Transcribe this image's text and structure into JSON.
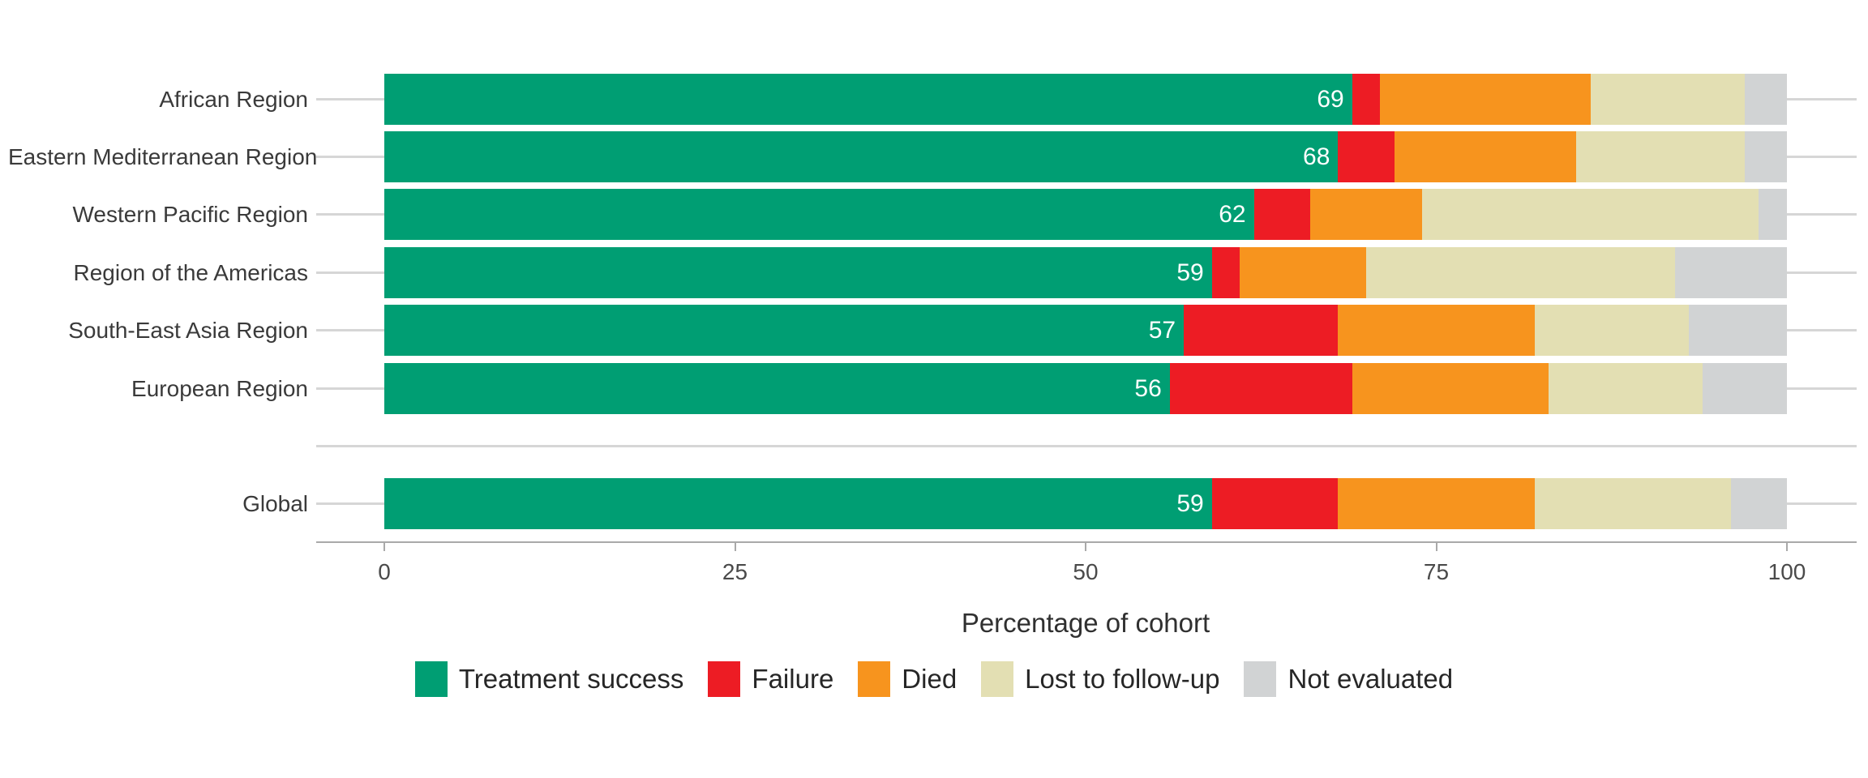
{
  "chart_data": {
    "type": "bar",
    "subtype": "horizontal-stacked-percentage",
    "title": "",
    "xlabel": "Percentage of cohort",
    "ylabel": "",
    "xlim": [
      0,
      100
    ],
    "x_ticks": [
      0,
      25,
      50,
      75,
      100
    ],
    "grid": "horizontal category gridlines only",
    "legend_position": "bottom",
    "categories": [
      "African Region",
      "Eastern Mediterranean Region",
      "Western Pacific Region",
      "Region of the Americas",
      "South-East Asia Region",
      "European Region",
      "Global"
    ],
    "series": [
      {
        "name": "Treatment success",
        "color": "#009e73",
        "values": [
          69,
          68,
          62,
          59,
          57,
          56,
          59
        ]
      },
      {
        "name": "Failure",
        "color": "#ed1c24",
        "values": [
          2,
          4,
          4,
          2,
          11,
          13,
          9
        ]
      },
      {
        "name": "Died",
        "color": "#f7941e",
        "values": [
          15,
          13,
          8,
          9,
          14,
          14,
          14
        ]
      },
      {
        "name": "Lost to follow-up",
        "color": "#e3dfb3",
        "values": [
          11,
          12,
          24,
          22,
          11,
          11,
          14
        ]
      },
      {
        "name": "Not evaluated",
        "color": "#d1d3d4",
        "values": [
          3,
          3,
          2,
          8,
          7,
          6,
          4
        ]
      }
    ],
    "bar_value_labels": [
      "69",
      "68",
      "62",
      "59",
      "57",
      "56",
      "59"
    ],
    "bar_value_label_series": "Treatment success"
  },
  "axis": {
    "x_title": "Percentage of cohort",
    "tick_labels": [
      "0",
      "25",
      "50",
      "75",
      "100"
    ]
  },
  "legend": {
    "items": [
      {
        "label": "Treatment success",
        "color": "#009e73"
      },
      {
        "label": "Failure",
        "color": "#ed1c24"
      },
      {
        "label": "Died",
        "color": "#f7941e"
      },
      {
        "label": "Lost to follow-up",
        "color": "#e3dfb3"
      },
      {
        "label": "Not evaluated",
        "color": "#d1d3d4"
      }
    ]
  },
  "colors": {
    "background": "#ffffff",
    "gridline": "#d6d6d6",
    "axis_line": "#a9a9a9",
    "tick_text": "#4a4a4a",
    "category_text": "#3a3a3a",
    "bar_value_text": "#ffffff"
  }
}
